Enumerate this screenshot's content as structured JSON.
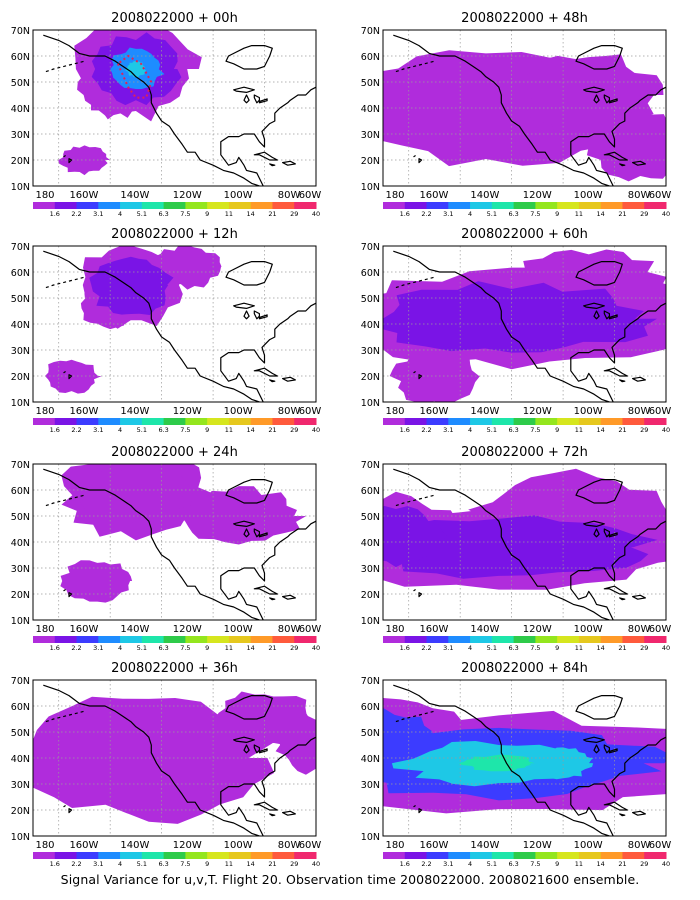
{
  "figure": {
    "caption": "Signal Variance for u,v,T. Flight 20. Observation time 2008022000. 2008021600 ensemble.",
    "axes": {
      "lon_labels": [
        "180",
        "160W",
        "140W",
        "120W",
        "100W",
        "80W",
        "60W"
      ],
      "lat_labels": [
        "70N",
        "60N",
        "50N",
        "40N",
        "30N",
        "20N",
        "10N"
      ]
    },
    "colorbar": {
      "labels": [
        "1.6",
        "2.2",
        "3.1",
        "4",
        "5.1",
        "6.3",
        "7.5",
        "9",
        "11",
        "14",
        "21",
        "29",
        "40"
      ],
      "colors": [
        "#ffffff",
        "#b02cdc",
        "#7a14e6",
        "#3c3cff",
        "#1e8cff",
        "#1ec8e6",
        "#1ee6aa",
        "#2ecb4a",
        "#94e61e",
        "#d6e61e",
        "#e6c81e",
        "#ff9a28",
        "#ff5a3c",
        "#f0286e"
      ]
    },
    "panels": [
      {
        "title": "2008022000 + 00h",
        "lead_hours": 0,
        "blobs": [
          [
            130,
            55,
            18,
            14,
            0.55
          ],
          [
            137,
            50,
            12,
            10,
            0.35
          ],
          [
            150,
            20,
            7,
            4,
            0.3
          ],
          [
            120,
            62,
            6,
            4,
            0.2
          ]
        ],
        "level": [
          2,
          4,
          5
        ]
      },
      {
        "title": "2008022000 + 12h",
        "lead_hours": 12,
        "blobs": [
          [
            132,
            55,
            16,
            12,
            0.45
          ],
          [
            140,
            48,
            9,
            7,
            0.3
          ],
          [
            110,
            62,
            10,
            6,
            0.25
          ],
          [
            155,
            20,
            8,
            5,
            0.25
          ]
        ],
        "level": [
          2,
          3,
          4
        ]
      },
      {
        "title": "2008022000 + 24h",
        "lead_hours": 24,
        "blobs": [
          [
            130,
            58,
            22,
            12,
            0.4
          ],
          [
            145,
            25,
            10,
            6,
            0.25
          ],
          [
            90,
            50,
            18,
            8,
            0.3
          ]
        ],
        "level": [
          1,
          2,
          3
        ]
      },
      {
        "title": "2008022000 + 36h",
        "lead_hours": 36,
        "blobs": [
          [
            125,
            40,
            35,
            18,
            0.35
          ],
          [
            80,
            55,
            14,
            8,
            0.3
          ],
          [
            60,
            45,
            12,
            8,
            0.3
          ]
        ],
        "level": [
          1,
          2,
          3
        ]
      },
      {
        "title": "2008022000 + 48h",
        "lead_hours": 48,
        "blobs": [
          [
            130,
            40,
            45,
            16,
            0.35
          ],
          [
            90,
            45,
            20,
            12,
            0.3
          ],
          [
            70,
            25,
            15,
            10,
            0.3
          ]
        ],
        "level": [
          1,
          2,
          3
        ]
      },
      {
        "title": "2008022000 + 60h",
        "lead_hours": 60,
        "blobs": [
          [
            120,
            42,
            55,
            14,
            0.4
          ],
          [
            150,
            20,
            12,
            8,
            0.3
          ],
          [
            90,
            55,
            22,
            10,
            0.3
          ]
        ],
        "level": [
          2,
          3,
          4
        ]
      },
      {
        "title": "2008022000 + 72h",
        "lead_hours": 72,
        "blobs": [
          [
            125,
            38,
            60,
            12,
            0.45
          ],
          [
            165,
            42,
            20,
            12,
            0.4
          ],
          [
            95,
            48,
            30,
            14,
            0.35
          ]
        ],
        "level": [
          2,
          4,
          5
        ]
      },
      {
        "title": "2008022000 + 84h",
        "lead_hours": 84,
        "blobs": [
          [
            125,
            38,
            65,
            14,
            0.55
          ],
          [
            170,
            45,
            24,
            14,
            0.45
          ],
          [
            100,
            38,
            18,
            10,
            0.5
          ]
        ],
        "level": [
          3,
          5,
          6
        ]
      }
    ]
  }
}
